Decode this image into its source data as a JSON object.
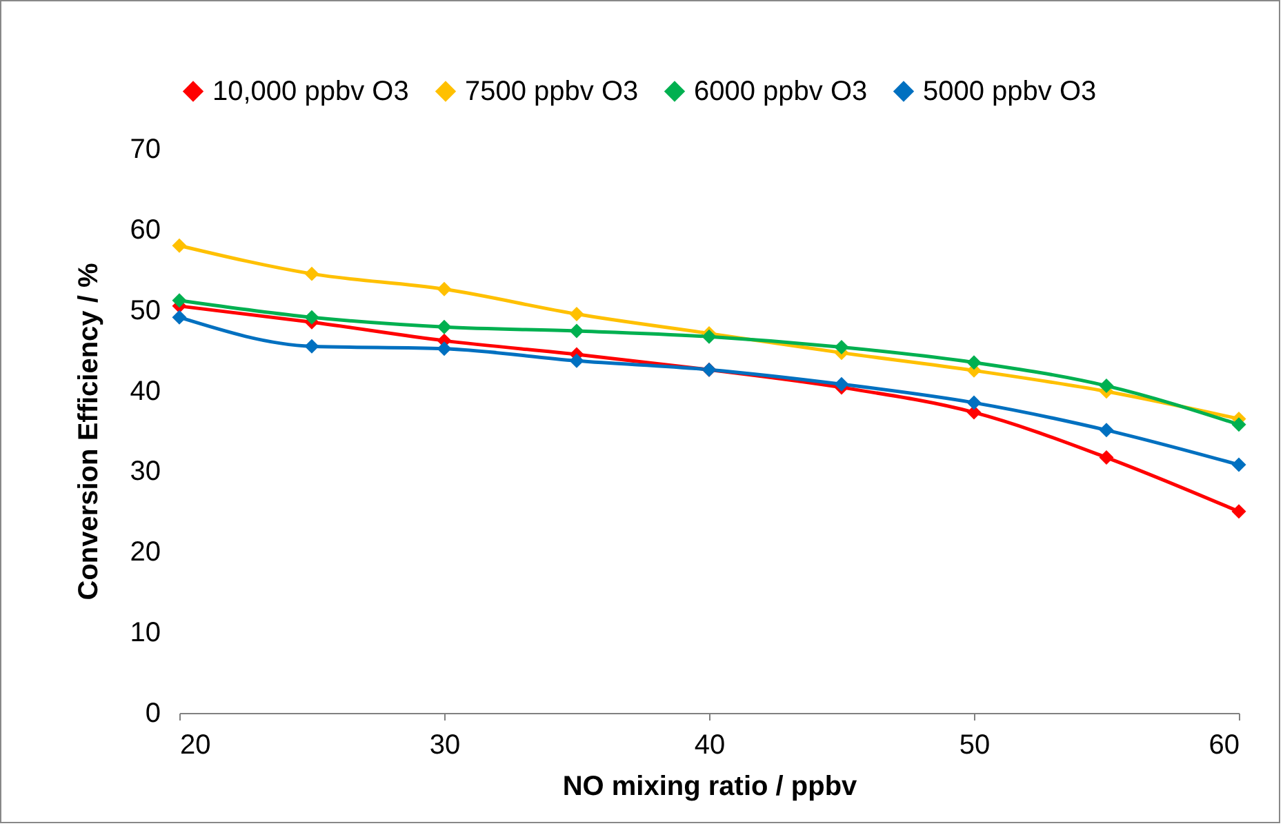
{
  "chart_data": {
    "type": "line",
    "xlabel": "NO mixing ratio / ppbv",
    "ylabel": "Conversion Efficiency / %",
    "x": [
      20,
      25,
      30,
      35,
      40,
      45,
      50,
      55,
      60
    ],
    "series": [
      {
        "name": "10,000 ppbv O3",
        "color": "#ff0000",
        "values": [
          50.5,
          48.5,
          46.2,
          44.5,
          42.6,
          40.4,
          37.3,
          31.7,
          25.0
        ]
      },
      {
        "name": "7500 ppbv O3",
        "color": "#ffc000",
        "values": [
          58.0,
          54.5,
          52.6,
          49.5,
          47.1,
          44.7,
          42.5,
          39.9,
          36.5
        ]
      },
      {
        "name": "6000 ppbv O3",
        "color": "#00b050",
        "values": [
          51.2,
          49.1,
          47.9,
          47.4,
          46.7,
          45.4,
          43.5,
          40.6,
          35.8
        ]
      },
      {
        "name": "5000 ppbv O3",
        "color": "#0070c0",
        "values": [
          49.1,
          45.5,
          45.2,
          43.7,
          42.6,
          40.8,
          38.5,
          35.1,
          30.8
        ]
      }
    ],
    "xlim": [
      20,
      60
    ],
    "xticks": [
      20,
      30,
      40,
      50,
      60
    ],
    "ylim": [
      0,
      70
    ],
    "yticks": [
      0,
      10,
      20,
      30,
      40,
      50,
      60,
      70
    ],
    "grid": false,
    "legend": "top",
    "marker": "diamond",
    "line_style": "solid"
  }
}
